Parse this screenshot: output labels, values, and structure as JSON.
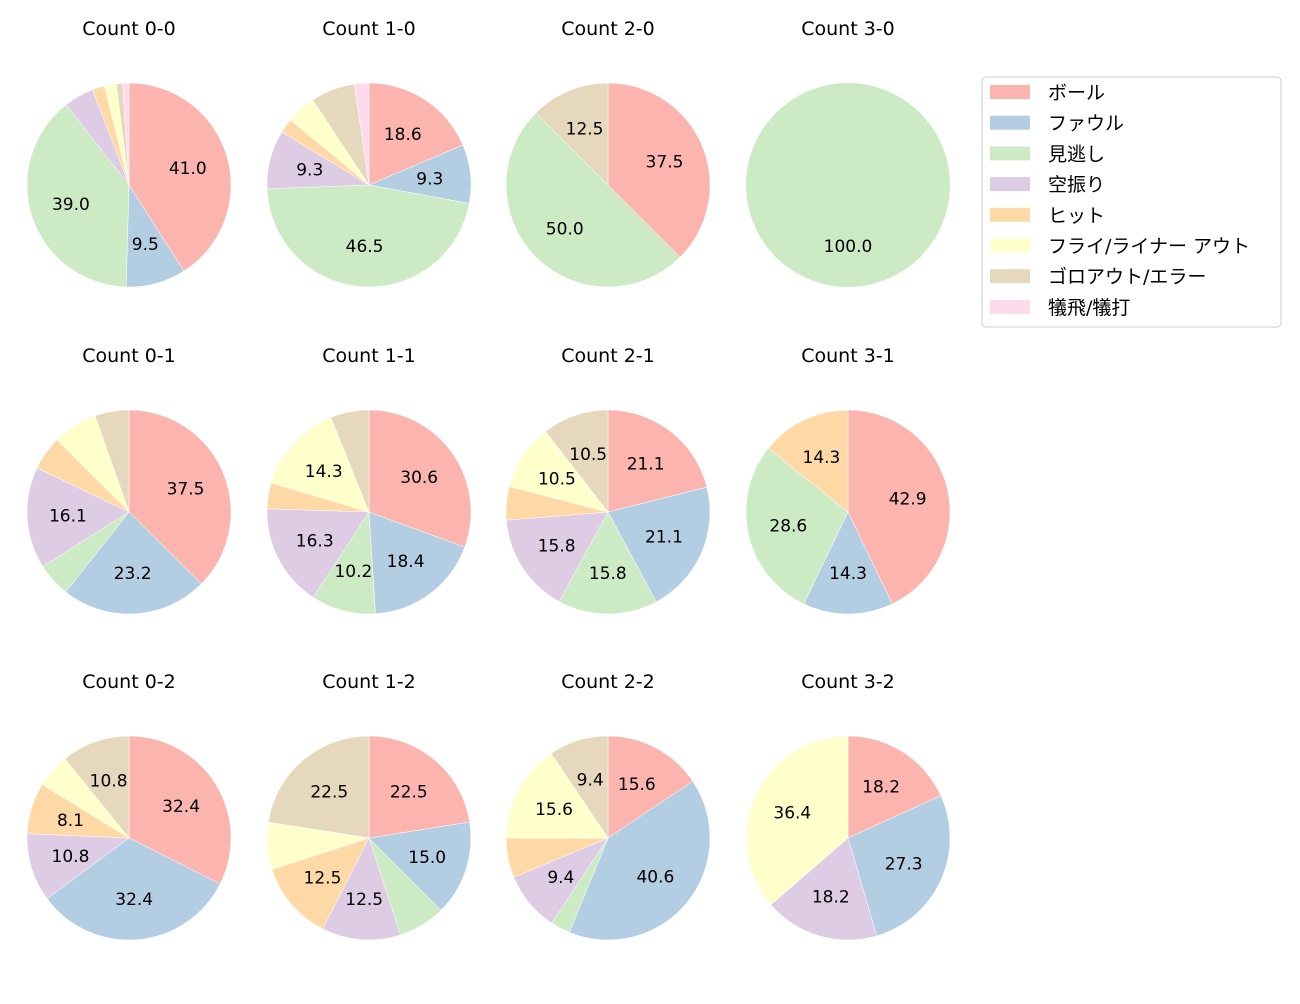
{
  "chart_data": {
    "type": "pie",
    "legend_placement": "right",
    "categories": [
      "ボール",
      "ファウル",
      "見逃し",
      "空振り",
      "ヒット",
      "フライ/ライナー アウト",
      "ゴロアウト/エラー",
      "犠飛/犠打"
    ],
    "colors": [
      "#fbb4ae",
      "#b3cde3",
      "#ccebc5",
      "#decbe4",
      "#fed9a6",
      "#ffffcc",
      "#e5d8bd",
      "#fddaec"
    ],
    "charts": [
      {
        "title": "Count 0-0",
        "values": [
          41.0,
          9.5,
          39.0,
          4.8,
          1.9,
          1.9,
          1.0,
          1.0
        ]
      },
      {
        "title": "Count 1-0",
        "values": [
          18.6,
          9.3,
          46.5,
          9.3,
          2.3,
          4.7,
          7.0,
          2.3
        ]
      },
      {
        "title": "Count 2-0",
        "values": [
          37.5,
          0,
          50.0,
          0,
          0,
          0,
          12.5,
          0
        ]
      },
      {
        "title": "Count 3-0",
        "values": [
          0,
          0,
          100.0,
          0,
          0,
          0,
          0,
          0
        ]
      },
      {
        "title": "Count 0-1",
        "values": [
          37.5,
          23.2,
          5.4,
          16.1,
          5.4,
          7.1,
          5.4,
          0
        ]
      },
      {
        "title": "Count 1-1",
        "values": [
          30.6,
          18.4,
          10.2,
          16.3,
          4.1,
          14.3,
          6.1,
          0
        ]
      },
      {
        "title": "Count 2-1",
        "values": [
          21.1,
          21.1,
          15.8,
          15.8,
          5.3,
          10.5,
          10.5,
          0
        ]
      },
      {
        "title": "Count 3-1",
        "values": [
          42.9,
          14.3,
          28.6,
          0,
          14.3,
          0,
          0,
          0
        ]
      },
      {
        "title": "Count 0-2",
        "values": [
          32.4,
          32.4,
          0,
          10.8,
          8.1,
          5.4,
          10.8,
          0
        ]
      },
      {
        "title": "Count 1-2",
        "values": [
          22.5,
          15.0,
          7.5,
          12.5,
          12.5,
          7.5,
          22.5,
          0
        ]
      },
      {
        "title": "Count 2-2",
        "values": [
          15.6,
          40.6,
          3.1,
          9.4,
          6.3,
          15.6,
          9.4,
          0
        ]
      },
      {
        "title": "Count 3-2",
        "values": [
          18.2,
          27.3,
          0,
          18.2,
          0,
          36.4,
          0,
          0
        ]
      }
    ]
  }
}
